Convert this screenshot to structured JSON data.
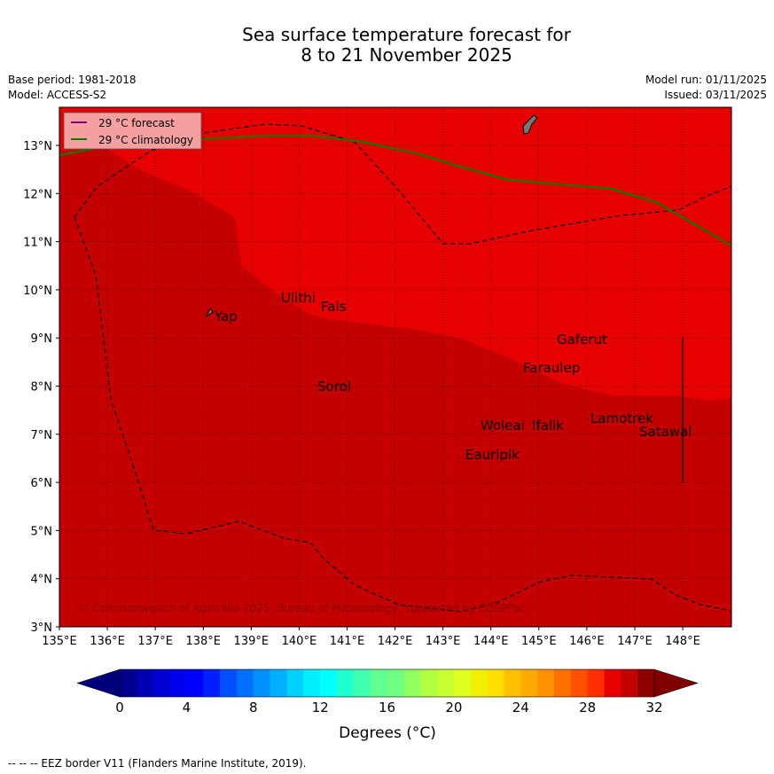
{
  "title_line1": "Sea surface temperature forecast for",
  "title_line2": "8 to 21 November 2025",
  "base_period": "Base period: 1981-2018",
  "model": "Model: ACCESS-S2",
  "model_run": "Model run: 01/11/2025",
  "issued": "Issued: 03/11/2025",
  "legend": {
    "forecast": "29 °C  forecast",
    "climatology": "29 °C  climatology",
    "forecast_color": "#800080",
    "climatology_color": "#008000"
  },
  "copyright": "© Commonwealth of Australia 2025, Bureau of Meteorology, supported by COSPPac",
  "x_ticks": [
    "135°E",
    "136°E",
    "137°E",
    "138°E",
    "139°E",
    "140°E",
    "141°E",
    "142°E",
    "143°E",
    "144°E",
    "145°E",
    "146°E",
    "147°E",
    "148°E"
  ],
  "y_ticks": [
    "13°N",
    "12°N",
    "11°N",
    "10°N",
    "9°N",
    "8°N",
    "7°N",
    "6°N",
    "5°N",
    "4°N",
    "3°N"
  ],
  "places": [
    {
      "name": "Yap"
    },
    {
      "name": "Ulithi"
    },
    {
      "name": "Fais"
    },
    {
      "name": "Sorol"
    },
    {
      "name": "Gaferut"
    },
    {
      "name": "Faraulep"
    },
    {
      "name": "Woleai"
    },
    {
      "name": "Ifalik"
    },
    {
      "name": "Lamotrek"
    },
    {
      "name": "Satawal"
    },
    {
      "name": "Eauripik"
    }
  ],
  "colorbar": {
    "ticks": [
      "0",
      "4",
      "8",
      "12",
      "16",
      "20",
      "24",
      "28",
      "32"
    ],
    "label": "Degrees (°C)",
    "colors": [
      "#000090",
      "#0000b0",
      "#0000d0",
      "#0000ee",
      "#0000ff",
      "#0020ff",
      "#0050ff",
      "#0070ff",
      "#0090ff",
      "#00b0ff",
      "#00d0ff",
      "#00eeff",
      "#00ffff",
      "#20ffd0",
      "#40ffb0",
      "#60ff90",
      "#70ff80",
      "#90ff60",
      "#b0ff40",
      "#c8ff30",
      "#e0ff20",
      "#f0f000",
      "#ffe000",
      "#ffc000",
      "#ffaa00",
      "#ff9000",
      "#ff7000",
      "#ff5000",
      "#ff3000",
      "#e60000",
      "#c40000",
      "#900000"
    ],
    "under_color": "#00007a",
    "over_color": "#800000"
  },
  "eez_note": "--  --  -- EEZ border V11 (Flanders Marine Institute, 2019)."
}
